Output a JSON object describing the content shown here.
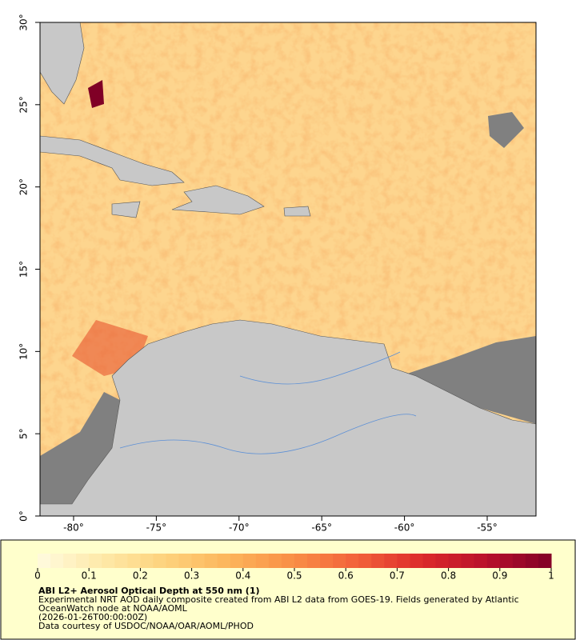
{
  "map": {
    "xlim": [
      -82.03,
      -52.05
    ],
    "ylim": [
      0,
      30
    ],
    "xticks": [
      {
        "value": -80,
        "label": "-80°"
      },
      {
        "value": -75,
        "label": "-75°"
      },
      {
        "value": -70,
        "label": "-70°"
      },
      {
        "value": -65,
        "label": "-65°"
      },
      {
        "value": -60,
        "label": "-60°"
      },
      {
        "value": -55,
        "label": "-55°"
      }
    ],
    "yticks": [
      {
        "value": 0,
        "label": "0°"
      },
      {
        "value": 5,
        "label": "5°"
      },
      {
        "value": 10,
        "label": "10°"
      },
      {
        "value": 15,
        "label": "15°"
      },
      {
        "value": 20,
        "label": "20°"
      },
      {
        "value": 25,
        "label": "25°"
      },
      {
        "value": 30,
        "label": "30°"
      }
    ]
  },
  "colorbar": {
    "lim": [
      0,
      1
    ],
    "ticks": [
      0,
      0.1,
      0.2,
      0.3,
      0.4,
      0.5,
      0.6,
      0.7,
      0.8,
      0.9,
      1
    ],
    "colors": [
      "#fffbe0",
      "#fee9a8",
      "#fdd27c",
      "#fcb45a",
      "#f98d45",
      "#f2603a",
      "#dc2a2a",
      "#b8102b",
      "#800026"
    ]
  },
  "title": "ABI L2+ Aerosol Optical Depth at 550 nm (1)",
  "description": [
    "Experimental NRT AOD daily composite created from ABI L2 data from GOES-19. Fields generated by Atlantic",
    "OceanWatch node at NOAA/AOML",
    "(2026-01-26T00:00:00Z)",
    "Data courtesy of USDOC/NOAA/OAR/AOML/PHOD"
  ]
}
